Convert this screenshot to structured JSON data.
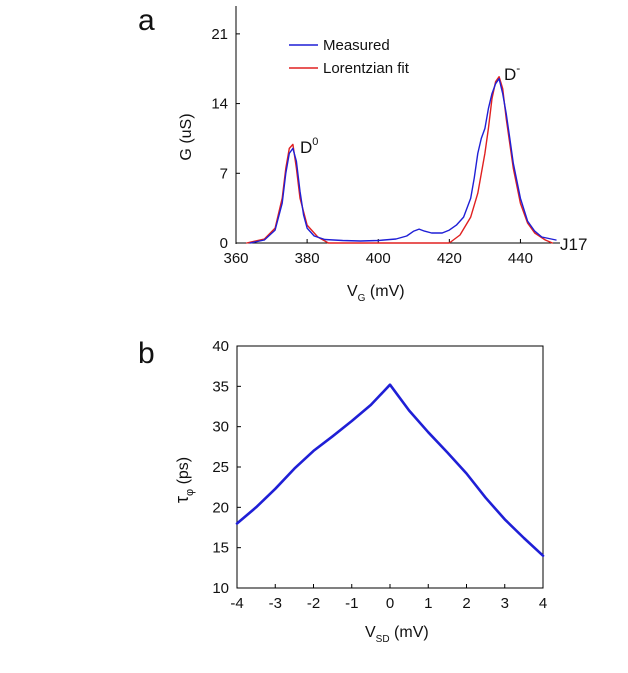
{
  "chart_data": [
    {
      "panel": "a",
      "type": "line",
      "xlabel": "V",
      "xlabel_sub": "G",
      "xlabel_unit": "(mV)",
      "ylabel": "G (uS)",
      "xlim": [
        360,
        450
      ],
      "ylim": [
        0,
        24
      ],
      "xticks": [
        360,
        380,
        400,
        420,
        440
      ],
      "yticks": [
        0,
        7,
        14,
        21
      ],
      "legend": {
        "position": "top-left",
        "entries": [
          "Measured",
          "Lorentzian fit"
        ]
      },
      "annotations": {
        "peak1": "D",
        "peak1_sup": "0",
        "peak2": "D",
        "peak2_sup": "-",
        "sample": "J17"
      },
      "series": [
        {
          "name": "Measured",
          "color": "#1f1fd6",
          "x": [
            364,
            368,
            371,
            373,
            374,
            375,
            376,
            377,
            378,
            379,
            380,
            382,
            385,
            390,
            395,
            400,
            405,
            408,
            410,
            411.5,
            413,
            415,
            418,
            420,
            422,
            424,
            426,
            427,
            428,
            429,
            430,
            431,
            432,
            433,
            434,
            435,
            436,
            437,
            438,
            440,
            442,
            444,
            446,
            450
          ],
          "y": [
            0,
            0.3,
            1.3,
            4.0,
            7.0,
            9.0,
            9.5,
            8.2,
            5.2,
            2.8,
            1.5,
            0.7,
            0.35,
            0.25,
            0.2,
            0.25,
            0.4,
            0.7,
            1.2,
            1.4,
            1.2,
            1.0,
            1.0,
            1.3,
            1.8,
            2.6,
            4.5,
            6.5,
            9.0,
            10.5,
            11.5,
            13.5,
            15.0,
            16.0,
            16.5,
            15.0,
            13.0,
            10.5,
            8.0,
            4.5,
            2.2,
            1.2,
            0.6,
            0.3
          ]
        },
        {
          "name": "Lorentzian fit",
          "color": "#e02020",
          "x": [
            363,
            368,
            371,
            373,
            374,
            375,
            376,
            377,
            378,
            380,
            383,
            386,
            420,
            423,
            426,
            428,
            430,
            431,
            432,
            433,
            434,
            435,
            436,
            438,
            440,
            442,
            444,
            447,
            449
          ],
          "y": [
            0,
            0.4,
            1.5,
            4.5,
            7.5,
            9.5,
            9.9,
            7.5,
            4.5,
            1.8,
            0.6,
            0,
            0,
            0.8,
            2.6,
            5.0,
            9.0,
            11.5,
            14.5,
            16.2,
            16.7,
            15.5,
            12.5,
            7.5,
            4.0,
            2.0,
            1.0,
            0.3,
            0
          ]
        }
      ]
    },
    {
      "panel": "b",
      "type": "line",
      "xlabel": "V",
      "xlabel_sub": "SD",
      "xlabel_unit": "(mV)",
      "ylabel": "τ",
      "ylabel_sub": "φ",
      "ylabel_unit": "(ps)",
      "xlim": [
        -4,
        4
      ],
      "ylim": [
        10,
        40
      ],
      "xticks": [
        -4,
        -3,
        -2,
        -1,
        0,
        1,
        2,
        3,
        4
      ],
      "yticks": [
        10,
        15,
        20,
        25,
        30,
        35,
        40
      ],
      "grid": false,
      "series": [
        {
          "name": "tau_phi",
          "color": "#1f1fd6",
          "x": [
            -4,
            -3.5,
            -3,
            -2.5,
            -2,
            -1.5,
            -1,
            -0.5,
            0,
            0.5,
            1,
            1.5,
            2,
            2.5,
            3,
            3.5,
            4
          ],
          "y": [
            18.0,
            20.0,
            22.3,
            24.8,
            27.0,
            28.8,
            30.7,
            32.7,
            35.2,
            32.0,
            29.3,
            26.8,
            24.2,
            21.2,
            18.5,
            16.2,
            14.0
          ]
        }
      ]
    }
  ]
}
